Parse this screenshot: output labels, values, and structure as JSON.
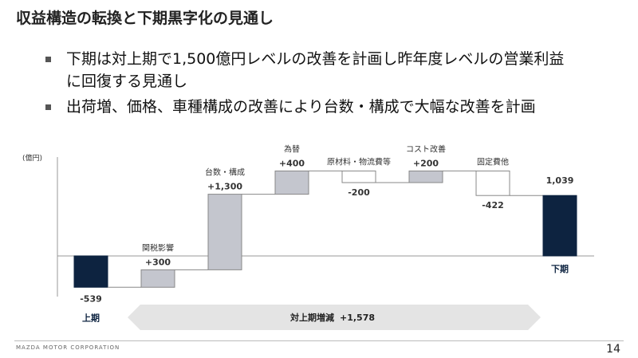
{
  "title": "収益構造の転換と下期黒字化の見通し",
  "bullets": [
    "下期は対上期で1,500億円レベルの改善を計画し昨年度レベルの営業利益に回復する見通し",
    "出荷増、価格、車種構成の改善により台数・構成で大幅な改善を計画"
  ],
  "footer": {
    "brand": "MAZDA MOTOR CORPORATION",
    "page": "14"
  },
  "chart_data": {
    "type": "waterfall",
    "unit_label": "(億円)",
    "ylim": [
      -700,
      1700
    ],
    "grid": false,
    "colors": {
      "total": "#0d2340",
      "increase": "#c4c6ce",
      "decrease": "#ffffff",
      "edge": "#888888"
    },
    "steps": [
      {
        "label": "上期",
        "value": -539,
        "value_label": "-539",
        "kind": "total"
      },
      {
        "label": "関税影響",
        "value": 300,
        "value_label": "+300",
        "kind": "delta"
      },
      {
        "label": "台数・構成",
        "value": 1300,
        "value_label": "+1,300",
        "kind": "delta"
      },
      {
        "label": "為替",
        "value": 400,
        "value_label": "+400",
        "kind": "delta"
      },
      {
        "label": "原材料・物流費等",
        "value": -200,
        "value_label": "-200",
        "kind": "delta"
      },
      {
        "label": "コスト改善",
        "value": 200,
        "value_label": "+200",
        "kind": "delta"
      },
      {
        "label": "固定費他",
        "value": -422,
        "value_label": "-422",
        "kind": "delta"
      },
      {
        "label": "下期",
        "value": 1039,
        "value_label": "1,039",
        "kind": "total"
      }
    ],
    "change_arrow": {
      "label": "対上期増減",
      "value": "+1,578"
    }
  }
}
